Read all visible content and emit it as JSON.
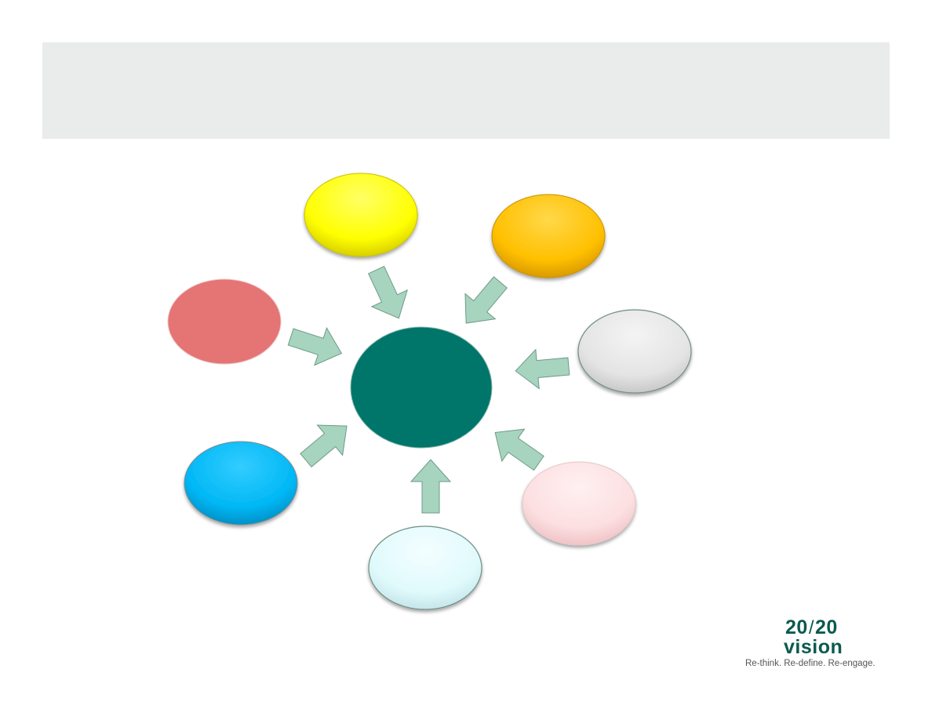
{
  "diagram": {
    "center": {
      "color": "#00756a"
    },
    "satellites": [
      {
        "name": "top-yellow",
        "color": "#ffff00"
      },
      {
        "name": "top-right-gold",
        "color": "#ffc000"
      },
      {
        "name": "right-gray",
        "color": "#e6e6e6"
      },
      {
        "name": "bottom-right-pink",
        "color": "#fde0e2"
      },
      {
        "name": "bottom-cyan",
        "color": "#e2fbfd"
      },
      {
        "name": "bottom-left-blue",
        "color": "#00b8f5"
      },
      {
        "name": "left-red",
        "color": "#e57475"
      }
    ],
    "arrow_color": "#9ed0b9"
  },
  "logo": {
    "number_left": "20",
    "number_right": "20",
    "word": "vision",
    "tagline": "Re-think. Re-define. Re-engage."
  }
}
